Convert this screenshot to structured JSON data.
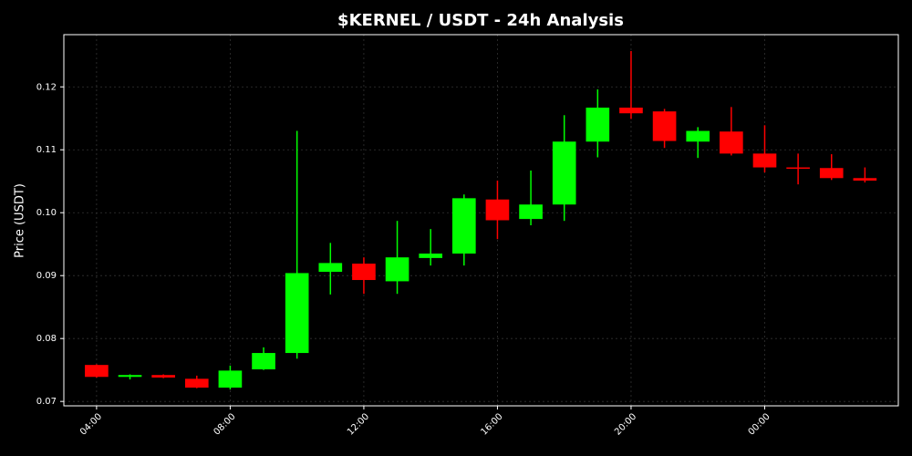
{
  "chart_data": {
    "type": "candlestick",
    "title": "$KERNEL / USDT - 24h Analysis",
    "y_label": "Price (USDT)",
    "categories": [
      "04:00",
      null,
      null,
      null,
      "08:00",
      null,
      null,
      null,
      "12:00",
      null,
      null,
      null,
      "16:00",
      null,
      null,
      null,
      "20:00",
      null,
      null,
      null,
      "00:00",
      null,
      null,
      null
    ],
    "open": [
      0.0758,
      0.0739,
      0.0742,
      0.0736,
      0.0722,
      0.0751,
      0.0777,
      0.0906,
      0.0919,
      0.0891,
      0.0928,
      0.0935,
      0.1021,
      0.099,
      0.1013,
      0.1113,
      0.1167,
      0.1161,
      0.1113,
      0.1129,
      0.1094,
      0.1072,
      0.1071,
      0.1055
    ],
    "high": [
      0.0759,
      0.0743,
      0.0743,
      0.0741,
      0.0757,
      0.0786,
      0.113,
      0.0952,
      0.0929,
      0.0987,
      0.0974,
      0.1029,
      0.1051,
      0.1067,
      0.1155,
      0.1196,
      0.1257,
      0.1165,
      0.1136,
      0.1168,
      0.1139,
      0.1094,
      0.1093,
      0.1072
    ],
    "low": [
      0.0738,
      0.0735,
      0.0737,
      0.0721,
      0.0719,
      0.075,
      0.0768,
      0.087,
      0.0871,
      0.0871,
      0.0916,
      0.0916,
      0.0958,
      0.098,
      0.0987,
      0.1088,
      0.1149,
      0.1103,
      0.1087,
      0.1091,
      0.1064,
      0.1045,
      0.1052,
      0.1048
    ],
    "close": [
      0.0739,
      0.0742,
      0.0738,
      0.0722,
      0.0749,
      0.0777,
      0.0904,
      0.092,
      0.0893,
      0.0929,
      0.0935,
      0.1023,
      0.0988,
      0.1013,
      0.1113,
      0.1167,
      0.1158,
      0.1114,
      0.113,
      0.1094,
      0.1072,
      0.107,
      0.1055,
      0.1051
    ],
    "up_color": "#00ff00",
    "down_color": "#ff0000",
    "ylim": [
      0.0693,
      0.1283
    ],
    "yticks": [
      0.07,
      0.08,
      0.09,
      {
        "value": 0.1,
        "label": "0.10"
      },
      0.11,
      0.12
    ],
    "grid": true
  }
}
